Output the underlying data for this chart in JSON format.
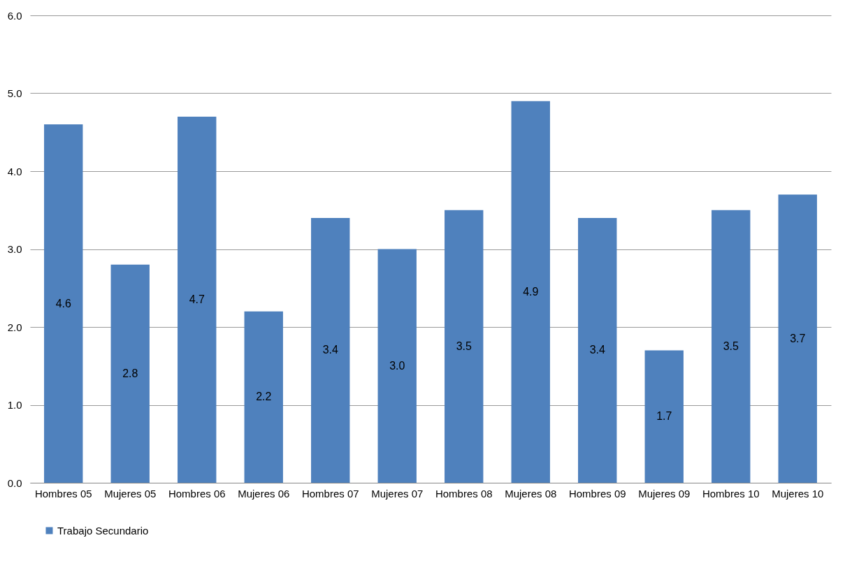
{
  "chart_data": {
    "type": "bar",
    "categories": [
      "Hombres 05",
      "Mujeres 05",
      "Hombres 06",
      "Mujeres 06",
      "Hombres 07",
      "Mujeres 07",
      "Hombres 08",
      "Mujeres 08",
      "Hombres 09",
      "Mujeres 09",
      "Hombres 10",
      "Mujeres 10"
    ],
    "series": [
      {
        "name": "Trabajo Secundario",
        "color": "#4f81bd",
        "values": [
          4.6,
          2.8,
          4.7,
          2.2,
          3.4,
          3.0,
          3.5,
          4.9,
          3.4,
          1.7,
          3.5,
          3.7
        ],
        "value_labels": [
          "4.6",
          "2.8",
          "4.7",
          "2.2",
          "3.4",
          "3.0",
          "3.5",
          "4.9",
          "3.4",
          "1.7",
          "3.5",
          "3.7"
        ]
      }
    ],
    "ylim": [
      0,
      6
    ],
    "yticks": [
      {
        "value": 0,
        "label": "0.0"
      },
      {
        "value": 1,
        "label": "1.0"
      },
      {
        "value": 2,
        "label": "2.0"
      },
      {
        "value": 3,
        "label": "3.0"
      },
      {
        "value": 4,
        "label": "4.0"
      },
      {
        "value": 5,
        "label": "5.0"
      },
      {
        "value": 6,
        "label": "6.0"
      }
    ],
    "grid": "y",
    "legend": "bottom"
  }
}
